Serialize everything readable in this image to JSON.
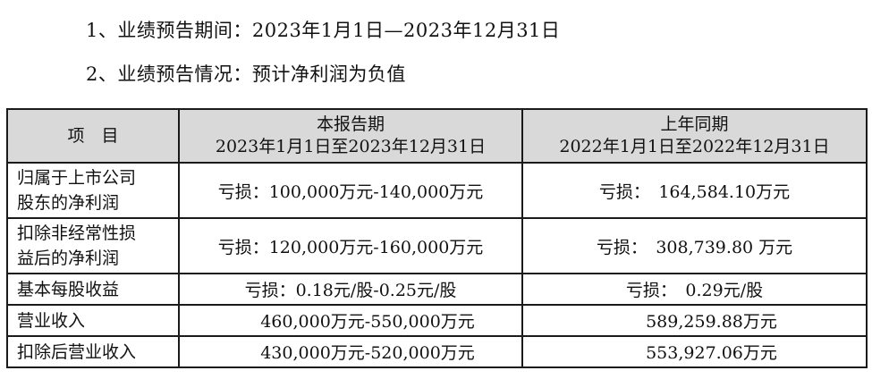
{
  "header_lines": [
    "1、业绩预告期间：2023年1月1日—2023年12月31日",
    "2、业绩预告情况：预计净利润为负值"
  ],
  "table": {
    "headers": {
      "item": "项　目",
      "current_title": "本报告期",
      "current_period": "2023年1月1日至2023年12月31日",
      "prior_title": "上年同期",
      "prior_period": "2022年1月1日至2022年12月31日"
    },
    "rows": [
      {
        "label_lines": [
          "归属于上市公司",
          "股东的净利润"
        ],
        "current": "亏损：100,000万元-140,000万元",
        "prior": "亏损：　164,584.10万元"
      },
      {
        "label_lines": [
          "扣除非经常性损",
          "益后的净利润"
        ],
        "current": "亏损：120,000万元-160,000万元",
        "prior": "亏损：　308,739.80 万元"
      },
      {
        "label_lines": [
          "基本每股收益"
        ],
        "current": "亏损：0.18元/股-0.25元/股",
        "prior": "亏损：　0.29元/股"
      },
      {
        "label_lines": [
          "营业收入"
        ],
        "current": "　　460,000万元-550,000万元",
        "prior": "　　589,259.88万元"
      },
      {
        "label_lines": [
          "扣除后营业收入"
        ],
        "current": "　　430,000万元-520,000万元",
        "prior": "　　553,927.06万元"
      }
    ]
  }
}
